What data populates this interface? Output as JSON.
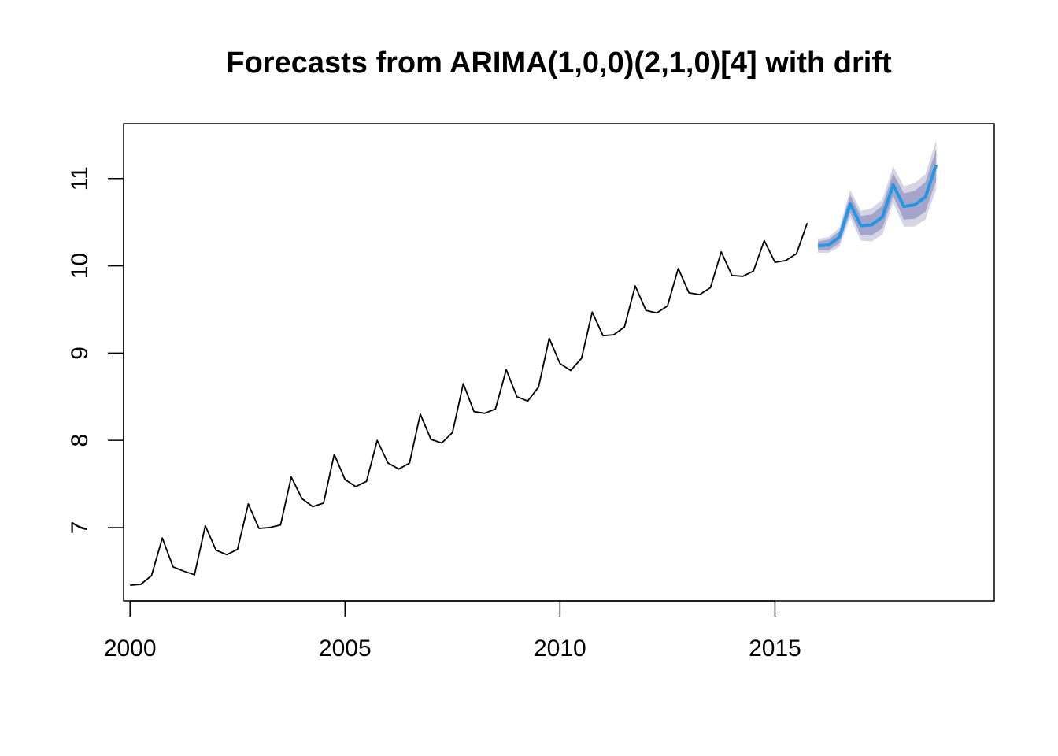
{
  "chart_data": {
    "type": "line",
    "title": "Forecasts from ARIMA(1,0,0)(2,1,0)[4] with drift",
    "xlabel": "",
    "ylabel": "",
    "xlim": [
      1999.85,
      2020.1
    ],
    "ylim": [
      6.16,
      11.63
    ],
    "x_ticks": [
      2000,
      2005,
      2010,
      2015
    ],
    "y_ticks": [
      7,
      8,
      9,
      10,
      11
    ],
    "grid": false,
    "legend": "none",
    "colors": {
      "history": "#000000",
      "forecast": "#2297e6",
      "band80": "#a5a5cc",
      "band95": "#d5d5e3"
    },
    "series": [
      {
        "values": [
          [
            2000.0,
            6.34
          ],
          [
            2000.25,
            6.35
          ],
          [
            2000.5,
            6.45
          ],
          [
            2000.75,
            6.88
          ],
          [
            2001.0,
            6.55
          ],
          [
            2001.25,
            6.5
          ],
          [
            2001.5,
            6.46
          ],
          [
            2001.75,
            7.02
          ],
          [
            2002.0,
            6.74
          ],
          [
            2002.25,
            6.69
          ],
          [
            2002.5,
            6.75
          ],
          [
            2002.75,
            7.27
          ],
          [
            2003.0,
            6.99
          ],
          [
            2003.25,
            7.0
          ],
          [
            2003.5,
            7.03
          ],
          [
            2003.75,
            7.58
          ],
          [
            2004.0,
            7.33
          ],
          [
            2004.25,
            7.24
          ],
          [
            2004.5,
            7.28
          ],
          [
            2004.75,
            7.84
          ],
          [
            2005.0,
            7.55
          ],
          [
            2005.25,
            7.47
          ],
          [
            2005.5,
            7.53
          ],
          [
            2005.75,
            8.0
          ],
          [
            2006.0,
            7.74
          ],
          [
            2006.25,
            7.67
          ],
          [
            2006.5,
            7.74
          ],
          [
            2006.75,
            8.3
          ],
          [
            2007.0,
            8.01
          ],
          [
            2007.25,
            7.97
          ],
          [
            2007.5,
            8.09
          ],
          [
            2007.75,
            8.65
          ],
          [
            2008.0,
            8.33
          ],
          [
            2008.25,
            8.31
          ],
          [
            2008.5,
            8.36
          ],
          [
            2008.75,
            8.81
          ],
          [
            2009.0,
            8.5
          ],
          [
            2009.25,
            8.45
          ],
          [
            2009.5,
            8.61
          ],
          [
            2009.75,
            9.17
          ],
          [
            2010.0,
            8.88
          ],
          [
            2010.25,
            8.8
          ],
          [
            2010.5,
            8.94
          ],
          [
            2010.75,
            9.47
          ],
          [
            2011.0,
            9.2
          ],
          [
            2011.25,
            9.21
          ],
          [
            2011.5,
            9.3
          ],
          [
            2011.75,
            9.77
          ],
          [
            2012.0,
            9.49
          ],
          [
            2012.25,
            9.46
          ],
          [
            2012.5,
            9.54
          ],
          [
            2012.75,
            9.97
          ],
          [
            2013.0,
            9.69
          ],
          [
            2013.25,
            9.67
          ],
          [
            2013.5,
            9.75
          ],
          [
            2013.75,
            10.16
          ],
          [
            2014.0,
            9.89
          ],
          [
            2014.25,
            9.88
          ],
          [
            2014.5,
            9.94
          ],
          [
            2014.75,
            10.29
          ],
          [
            2015.0,
            10.04
          ],
          [
            2015.25,
            10.06
          ],
          [
            2015.5,
            10.14
          ],
          [
            2015.75,
            10.49
          ]
        ]
      },
      {
        "values": [
          [
            2016.0,
            10.23
          ],
          [
            2016.25,
            10.24
          ],
          [
            2016.5,
            10.33
          ],
          [
            2016.75,
            10.71
          ],
          [
            2017.0,
            10.46
          ],
          [
            2017.25,
            10.47
          ],
          [
            2017.5,
            10.56
          ],
          [
            2017.75,
            10.93
          ],
          [
            2018.0,
            10.68
          ],
          [
            2018.25,
            10.7
          ],
          [
            2018.5,
            10.79
          ],
          [
            2018.75,
            11.16
          ]
        ],
        "lower80": [
          10.18,
          10.18,
          10.26,
          10.61,
          10.35,
          10.35,
          10.43,
          10.8,
          10.53,
          10.54,
          10.62,
          10.98
        ],
        "upper80": [
          10.28,
          10.3,
          10.4,
          10.81,
          10.57,
          10.59,
          10.69,
          11.06,
          10.83,
          10.86,
          10.96,
          11.34
        ],
        "lower95": [
          10.15,
          10.15,
          10.22,
          10.55,
          10.29,
          10.28,
          10.36,
          10.72,
          10.45,
          10.45,
          10.53,
          10.88
        ],
        "upper95": [
          10.31,
          10.33,
          10.44,
          10.87,
          10.63,
          10.66,
          10.76,
          11.14,
          10.91,
          10.95,
          11.05,
          11.44
        ]
      }
    ]
  }
}
